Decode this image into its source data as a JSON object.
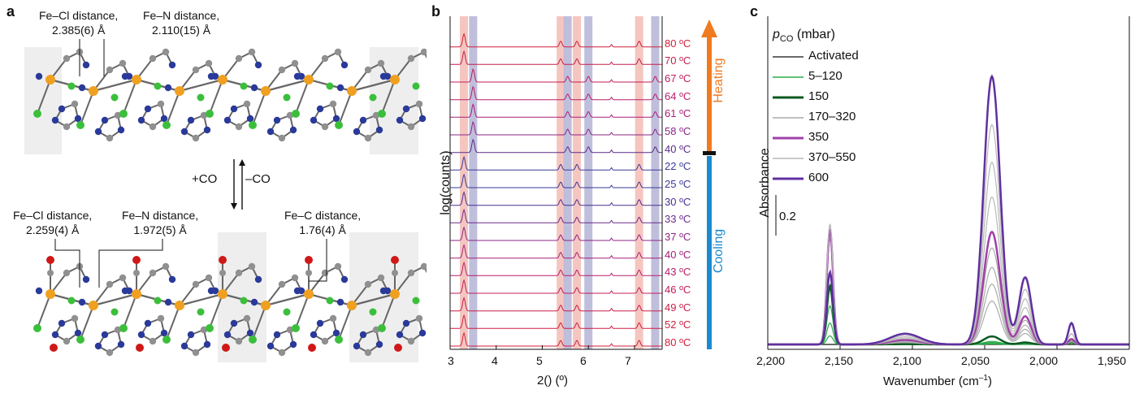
{
  "panel_a": {
    "label": "a",
    "top_fecl": [
      "Fe–Cl distance,",
      "2.385(6) Å"
    ],
    "top_fen": [
      "Fe–N distance,",
      "2.110(15)  Å"
    ],
    "plus_co": "+CO",
    "minus_co": "–CO",
    "bot_fecl": [
      "Fe–Cl distance,",
      "2.259(4) Å"
    ],
    "bot_fen": [
      "Fe–N distance,",
      "1.972(5) Å"
    ],
    "bot_fec": [
      "Fe–C distance,",
      "1.76(4) Å"
    ],
    "colors": {
      "fe": "#f0a020",
      "n": "#2a3a9a",
      "cl": "#3bbf3b",
      "c": "#909090",
      "o": "#d01818"
    }
  },
  "panel_b": {
    "label": "b",
    "xlabel": "2() (º)",
    "ylabel": "log(counts)",
    "heating": "Heating",
    "cooling": "Cooling",
    "heating_color": "#f07a20",
    "cooling_color": "#1a8ad0",
    "chart_data": {
      "type": "line",
      "x_ticks": [
        "3",
        "4",
        "5",
        "6",
        "7"
      ],
      "xlim": [
        3.0,
        7.6
      ],
      "highlight_bands_red": [
        3.3,
        5.4,
        5.75,
        7.1
      ],
      "highlight_bands_blue": [
        3.5,
        5.55,
        6.0,
        7.45
      ],
      "temperatures": [
        "80 ºC",
        "70 ºC",
        "67 ºC",
        "64 ºC",
        "61 ºC",
        "58 ºC",
        "40 ºC",
        "22 ºC",
        "25 ºC",
        "30 ºC",
        "33 ºC",
        "37 ºC",
        "40 ºC",
        "43 ºC",
        "46 ºC",
        "49 ºC",
        "52 ºC",
        "80 ºC"
      ],
      "temp_colors": [
        "#d0203a",
        "#c21f4a",
        "#c01c5a",
        "#b81e6a",
        "#a8207a",
        "#8c2486",
        "#5a2a8a",
        "#3a3a9a",
        "#3a3a9a",
        "#4a2f94",
        "#6a2a8c",
        "#8c2486",
        "#a8207a",
        "#b81e6a",
        "#c01c5a",
        "#c81e4a",
        "#cf1f40",
        "#d0203a"
      ]
    }
  },
  "panel_c": {
    "label": "c",
    "legend_title": "p",
    "legend_title_sub": "CO",
    "legend_title_unit": "(mbar)",
    "legend": [
      {
        "name": "Activated",
        "color": "#111111",
        "width": 1.2
      },
      {
        "name": "5–120",
        "color": "#2aaa4a",
        "width": 1.5
      },
      {
        "name": "150",
        "color": "#0a5a20",
        "width": 3
      },
      {
        "name": "170–320",
        "color": "#aaaaaa",
        "width": 1.5
      },
      {
        "name": "350",
        "color": "#a040a8",
        "width": 3
      },
      {
        "name": "370–550",
        "color": "#b8b8b8",
        "width": 1.5
      },
      {
        "name": "600",
        "color": "#6030a0",
        "width": 3
      }
    ],
    "scale_label": "0.2",
    "xlabel": "Wavenumber (cm",
    "xlabel_sup": "–1",
    "xlabel_end": ")",
    "ylabel": "Absorbance",
    "chart_data": {
      "type": "line",
      "x_ticks": [
        "2,200",
        "2,150",
        "2,100",
        "2,050",
        "2,000",
        "1,950"
      ],
      "xlim": [
        2200,
        1950
      ],
      "peaks_cm": [
        2157,
        2045,
        1990
      ],
      "series_max": {
        "600": [
          0.5,
          1.0,
          0.08
        ],
        "350": [
          0.55,
          0.42,
          0.02
        ],
        "150": [
          0.36,
          0.03,
          0.01
        ]
      }
    }
  }
}
